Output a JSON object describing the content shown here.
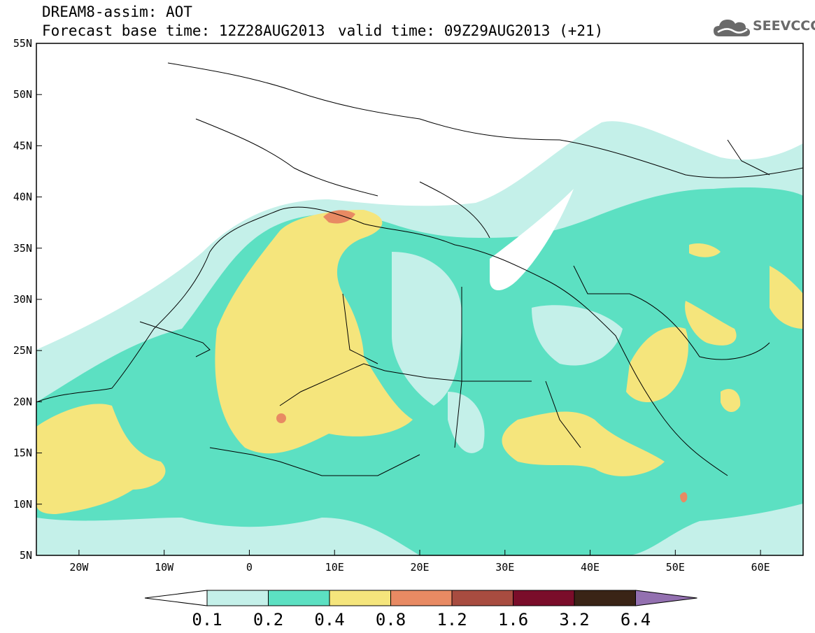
{
  "header": {
    "line1": "DREAM8-assim: AOT",
    "line2": "Forecast base time: 12Z28AUG2013",
    "valid": "valid time: 09Z29AUG2013 (+21)"
  },
  "logo": {
    "text": "SEEVCCC",
    "icon": "cloud-logo-icon"
  },
  "map": {
    "lon_range": [
      -25,
      65
    ],
    "lat_range": [
      5,
      55
    ],
    "lat_labels": [
      "5N",
      "10N",
      "15N",
      "20N",
      "25N",
      "30N",
      "35N",
      "40N",
      "45N",
      "50N",
      "55N"
    ],
    "lon_labels": [
      "20W",
      "10W",
      "0",
      "10E",
      "20E",
      "30E",
      "40E",
      "50E",
      "60E"
    ]
  },
  "colorbar": {
    "labels": [
      "0.1",
      "0.2",
      "0.4",
      "0.8",
      "1.2",
      "1.6",
      "3.2",
      "6.4"
    ],
    "colors": [
      "#ffffff",
      "#c4f0e9",
      "#5ce0c2",
      "#f5e57c",
      "#e88a63",
      "#a84c40",
      "#7a0d2a",
      "#3a2416",
      "#9370b0"
    ]
  }
}
